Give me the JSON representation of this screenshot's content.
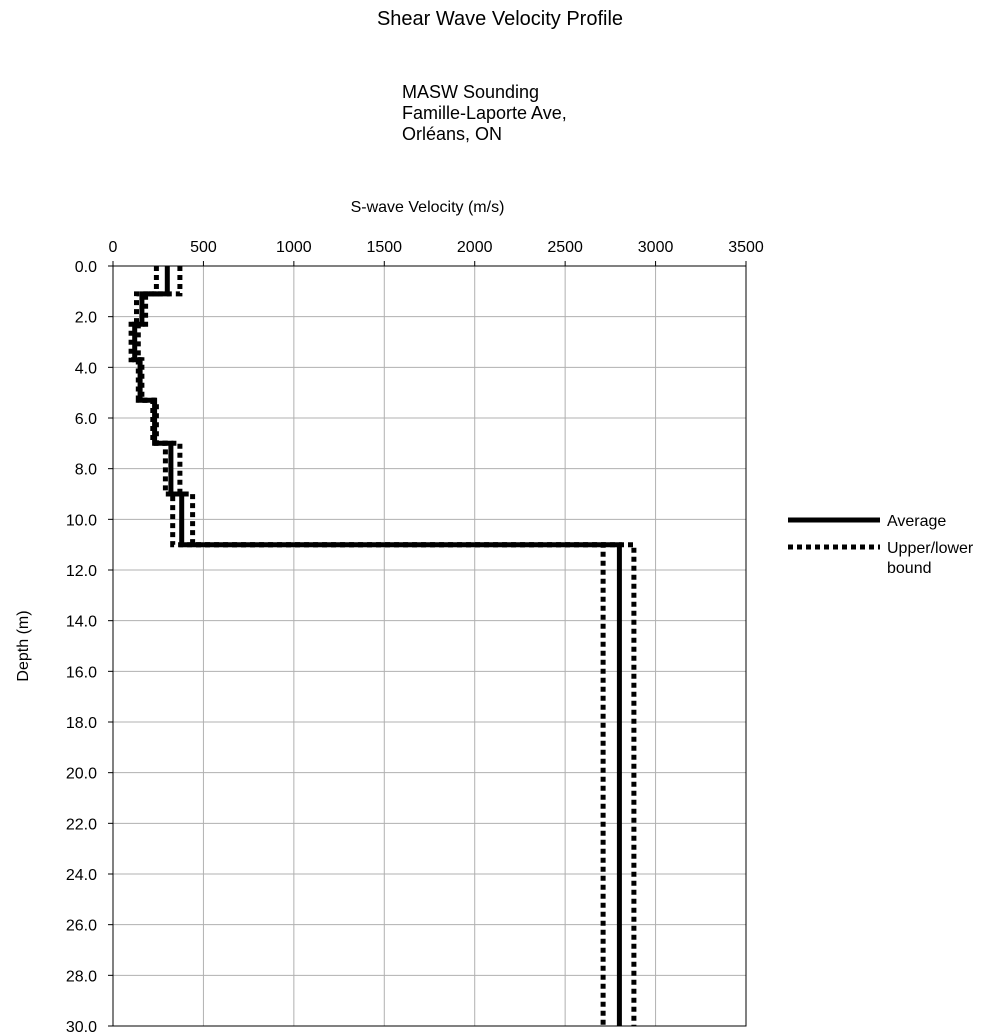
{
  "chart_data": {
    "type": "line",
    "title": "Shear Wave Velocity Profile",
    "subtitle": [
      "MASW Sounding",
      "Famille-Laporte Ave,",
      "Orléans, ON"
    ],
    "xlabel": "S-wave Velocity (m/s)",
    "ylabel": "Depth (m)",
    "xlim": [
      0,
      3500
    ],
    "ylim": [
      0,
      30
    ],
    "y_inverted": true,
    "x_axis_position": "top",
    "x_ticks": [
      "0",
      "500",
      "1000",
      "1500",
      "2000",
      "2500",
      "3000",
      "3500"
    ],
    "y_ticks": [
      "0.0",
      "2.0",
      "4.0",
      "6.0",
      "8.0",
      "10.0",
      "12.0",
      "14.0",
      "16.0",
      "18.0",
      "20.0",
      "22.0",
      "24.0",
      "26.0",
      "28.0",
      "30.0"
    ],
    "grid": true,
    "legend_position": "right",
    "series": [
      {
        "name": "Average",
        "style": "solid",
        "x": [
          300,
          300,
          160,
          160,
          120,
          120,
          150,
          150,
          230,
          230,
          320,
          320,
          380,
          380,
          2800,
          2800
        ],
        "y": [
          0,
          1.1,
          1.1,
          2.3,
          2.3,
          3.7,
          3.7,
          5.3,
          5.3,
          7.0,
          7.0,
          9.0,
          9.0,
          11.0,
          11.0,
          30
        ]
      },
      {
        "name": "Upper/lower bound",
        "style": "dotted",
        "x": [
          370,
          370,
          180,
          180,
          140,
          140,
          160,
          160,
          240,
          240,
          370,
          370,
          440,
          440,
          2880,
          2880
        ],
        "y": [
          0,
          1.1,
          1.1,
          2.3,
          2.3,
          3.7,
          3.7,
          5.3,
          5.3,
          7.0,
          7.0,
          9.0,
          9.0,
          11.0,
          11.0,
          30
        ]
      },
      {
        "name": "",
        "style": "dotted",
        "legend": false,
        "x": [
          240,
          240,
          130,
          130,
          100,
          100,
          140,
          140,
          220,
          220,
          290,
          290,
          330,
          330,
          2710,
          2710
        ],
        "y": [
          0,
          1.1,
          1.1,
          2.3,
          2.3,
          3.7,
          3.7,
          5.3,
          5.3,
          7.0,
          7.0,
          9.0,
          9.0,
          11.0,
          11.0,
          30
        ]
      }
    ],
    "legend": [
      {
        "label_lines": [
          "Average"
        ],
        "style": "solid"
      },
      {
        "label_lines": [
          "Upper/lower",
          "bound"
        ],
        "style": "dotted"
      }
    ]
  }
}
